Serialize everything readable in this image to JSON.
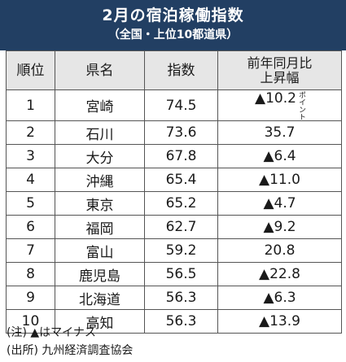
{
  "header": {
    "title": "2月の宿泊稼働指数",
    "subtitle": "（全国・上位10都道県）"
  },
  "table": {
    "columns": [
      "順位",
      "県名",
      "指数",
      "前年同月比\n上昇幅"
    ],
    "rows": [
      {
        "rank": "1",
        "pref": "宮崎",
        "index": "74.5",
        "change": "▲10.2",
        "unit": "ポイント"
      },
      {
        "rank": "2",
        "pref": "石川",
        "index": "73.6",
        "change": "35.7",
        "unit": ""
      },
      {
        "rank": "3",
        "pref": "大分",
        "index": "67.8",
        "change": "▲6.4",
        "unit": ""
      },
      {
        "rank": "4",
        "pref": "沖縄",
        "index": "65.4",
        "change": "▲11.0",
        "unit": ""
      },
      {
        "rank": "5",
        "pref": "東京",
        "index": "65.2",
        "change": "▲4.7",
        "unit": ""
      },
      {
        "rank": "6",
        "pref": "福岡",
        "index": "62.7",
        "change": "▲9.2",
        "unit": ""
      },
      {
        "rank": "7",
        "pref": "富山",
        "index": "59.2",
        "change": "20.8",
        "unit": ""
      },
      {
        "rank": "8",
        "pref": "鹿児島",
        "index": "56.5",
        "change": "▲22.8",
        "unit": ""
      },
      {
        "rank": "9",
        "pref": "北海道",
        "index": "56.3",
        "change": "▲6.3",
        "unit": ""
      },
      {
        "rank": "10",
        "pref": "高知",
        "index": "56.3",
        "change": "▲13.9",
        "unit": ""
      }
    ]
  },
  "notes": {
    "note": "(注) ▲はマイナス",
    "source": "(出所) 九州経済調査協会"
  },
  "colors": {
    "header_bg": "#223f63",
    "header_row_bg": "#e6e6e6"
  }
}
